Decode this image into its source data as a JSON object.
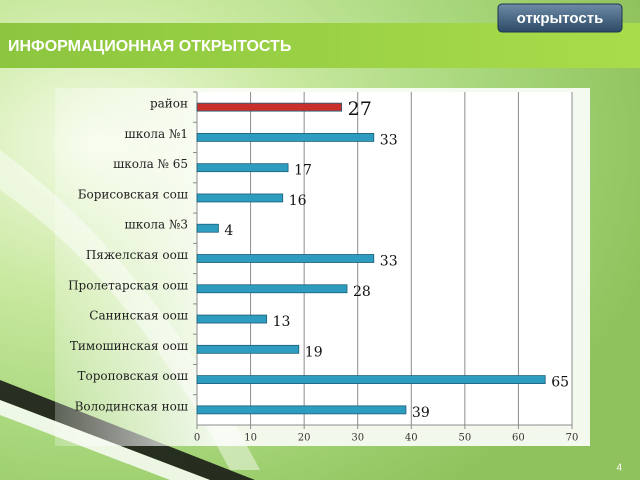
{
  "header": {
    "title": "ИНФОРМАЦИОННАЯ ОТКРЫТОСТЬ",
    "button": "открытость"
  },
  "page_number": "4",
  "chart_data": {
    "type": "bar",
    "orientation": "horizontal",
    "categories": [
      "район",
      "школа №1",
      "школа № 65",
      "Борисовская сош",
      "школа №3",
      "Пяжелская оош",
      "Пролетарская оош",
      "Санинская оош",
      "Тимошинская оош",
      "Тороповская оош",
      "Володинская нош"
    ],
    "series": [
      {
        "values": [
          27,
          33,
          17,
          16,
          4,
          33,
          28,
          13,
          19,
          65,
          39
        ]
      }
    ],
    "colors": [
      "#c9302c",
      "#2e9cbf",
      "#2e9cbf",
      "#2e9cbf",
      "#2e9cbf",
      "#2e9cbf",
      "#2e9cbf",
      "#2e9cbf",
      "#2e9cbf",
      "#2e9cbf",
      "#2e9cbf"
    ],
    "xlim": [
      0,
      70
    ],
    "xticks": [
      0,
      10,
      20,
      30,
      40,
      50,
      60,
      70
    ],
    "grid": true
  }
}
